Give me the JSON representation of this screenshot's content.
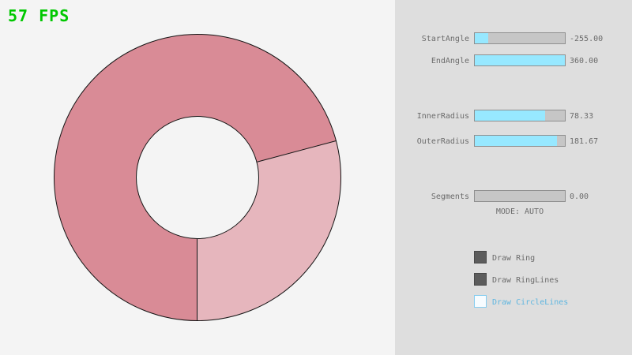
{
  "fps": {
    "text": "57 FPS",
    "color": "#00c800"
  },
  "ring": {
    "start_angle": -255.0,
    "end_angle": 360.0,
    "inner_radius": 78.33,
    "outer_radius": 181.67,
    "segments": 0.0,
    "color_overlap": "#d98b96",
    "color_single": "#e6b6bd",
    "line_color": "#141414"
  },
  "panel": {
    "sliders": [
      {
        "label": "StartAngle",
        "value": "-255.00",
        "fill_pct": 15
      },
      {
        "label": "EndAngle",
        "value": "360.00",
        "fill_pct": 100
      },
      {
        "label": "InnerRadius",
        "value": "78.33",
        "fill_pct": 78
      },
      {
        "label": "OuterRadius",
        "value": "181.67",
        "fill_pct": 91
      },
      {
        "label": "Segments",
        "value": "0.00",
        "fill_pct": 0
      }
    ],
    "mode_text": "MODE: AUTO",
    "checkboxes": [
      {
        "label": "Draw Ring",
        "checked": true
      },
      {
        "label": "Draw RingLines",
        "checked": true
      },
      {
        "label": "Draw CircleLines",
        "checked": false
      }
    ]
  },
  "colors": {
    "background": "#f4f4f4",
    "panel_background": "#dedede",
    "slider_fill": "#97e8ff",
    "slider_track": "#c6c6c6",
    "text": "#6b6b6b",
    "unchecked_blue": "#5fb6e0"
  }
}
